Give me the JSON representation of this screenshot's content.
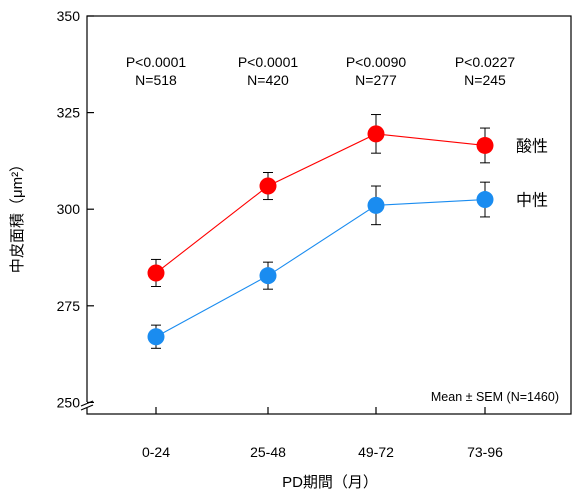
{
  "chart_data": {
    "type": "line",
    "xlabel": "PD期間（月）",
    "ylabel": "中皮面積（μm²）",
    "categories": [
      "0-24",
      "25-48",
      "49-72",
      "73-96"
    ],
    "yticks": [
      250,
      275,
      300,
      325,
      350
    ],
    "ylim": [
      247,
      350
    ],
    "axis_break": true,
    "grid": false,
    "series": [
      {
        "name": "酸性",
        "color": "#ff0000",
        "values": [
          283.5,
          306,
          319.5,
          316.5
        ],
        "error": [
          3.5,
          3.5,
          5,
          4.5
        ]
      },
      {
        "name": "中性",
        "color": "#1a8cf0",
        "values": [
          267,
          282.8,
          301,
          302.5
        ],
        "error": [
          3,
          3.5,
          5,
          4.5
        ]
      }
    ],
    "annotations": [
      {
        "p": "P<0.0001",
        "n": "N=518"
      },
      {
        "p": "P<0.0001",
        "n": "N=420"
      },
      {
        "p": "P<0.0090",
        "n": "N=277"
      },
      {
        "p": "P<0.0227",
        "n": "N=245"
      }
    ],
    "note": "Mean ± SEM (N=1460)"
  }
}
